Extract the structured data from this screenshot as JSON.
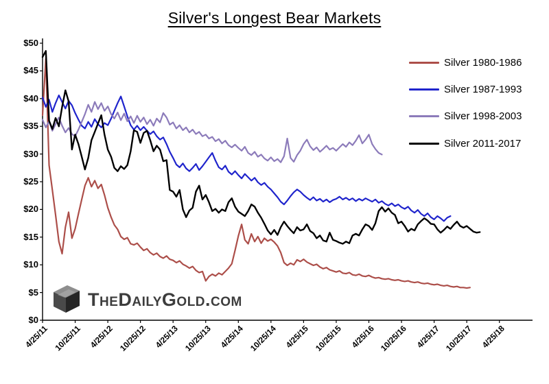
{
  "title": "Silver's Longest Bear Markets",
  "watermark": {
    "text": "TheDailyGold.com"
  },
  "chart_data": {
    "type": "line",
    "title": "Silver's Longest Bear Markets",
    "grid": false,
    "legend": {
      "position": "top-right",
      "entries": [
        "Silver 1980-1986",
        "Silver 1987-1993",
        "Silver 1998-2003",
        "Silver 2011-2017"
      ]
    },
    "x_axis": {
      "tick_labels": [
        "4/25/11",
        "10/25/11",
        "4/25/12",
        "10/25/12",
        "4/25/13",
        "10/25/13",
        "4/25/14",
        "10/25/14",
        "4/25/15",
        "10/25/15",
        "4/25/16",
        "10/25/16",
        "4/25/17",
        "10/25/17",
        "4/25/18"
      ],
      "note": "all four bear markets overlaid on a common timeline, t in 6-month units from 4/25/11"
    },
    "y_axis": {
      "min": 0,
      "max": 50,
      "tick_step": 5,
      "tick_labels": [
        "$0",
        "$5",
        "$10",
        "$15",
        "$20",
        "$25",
        "$30",
        "$35",
        "$40",
        "$45",
        "$50"
      ]
    },
    "series": [
      {
        "name": "Silver 1980-1986",
        "color": "#ac4e49",
        "t_start": 0,
        "t_step": 0.1,
        "values": [
          37,
          47.2,
          28,
          23.5,
          19,
          14.2,
          12,
          16.8,
          19.5,
          14.8,
          16.5,
          19.2,
          21.8,
          24.3,
          25.7,
          24.1,
          25.2,
          23.8,
          24.5,
          22.6,
          20.3,
          18.6,
          17.2,
          16.4,
          15.1,
          14.6,
          14.9,
          13.8,
          13.6,
          13.9,
          13.2,
          12.6,
          12.9,
          12.2,
          11.8,
          12.1,
          11.5,
          11.2,
          11.6,
          11,
          10.8,
          10.4,
          10.7,
          10.1,
          9.8,
          9.4,
          9.7,
          9,
          8.6,
          8.8,
          7.1,
          7.9,
          8.3,
          8,
          8.5,
          8.2,
          8.8,
          9.4,
          10.2,
          12.6,
          15.2,
          17.3,
          14.5,
          13.8,
          15.6,
          14.2,
          15.1,
          13.9,
          14.8,
          14.3,
          14.6,
          14.1,
          13.4,
          12.2,
          10.4,
          9.9,
          10.3,
          10,
          10.9,
          10.6,
          11,
          10.5,
          10.2,
          9.9,
          10.1,
          9.6,
          9.3,
          9.5,
          9.1,
          8.9,
          8.7,
          8.9,
          8.5,
          8.4,
          8.6,
          8.2,
          8.1,
          8.3,
          8,
          7.9,
          8.1,
          7.8,
          7.6,
          7.7,
          7.5,
          7.4,
          7.5,
          7.3,
          7.2,
          7.3,
          7.1,
          7,
          7.1,
          6.9,
          6.8,
          6.9,
          6.7,
          6.6,
          6.7,
          6.5,
          6.4,
          6.5,
          6.3,
          6.2,
          6.3,
          6.1,
          6,
          6.1,
          5.9,
          5.9,
          5.8,
          5.9
        ]
      },
      {
        "name": "Silver 1987-1993",
        "color": "#1f24cc",
        "t_start": 0,
        "t_step": 0.1,
        "values": [
          40.2,
          38.5,
          39.8,
          37.6,
          39.2,
          40.6,
          39.4,
          38.2,
          39.6,
          38.8,
          37.4,
          36.2,
          35.1,
          34.6,
          35.8,
          34.9,
          36.3,
          35.4,
          34.8,
          35.6,
          35.2,
          36.4,
          37.8,
          39.2,
          40.4,
          38.6,
          36.8,
          35.2,
          34.4,
          35.1,
          34.3,
          34.9,
          34.2,
          33.6,
          34.1,
          33.2,
          32.6,
          33,
          31.8,
          30.4,
          29.3,
          28.1,
          27.6,
          28.3,
          27.4,
          26.9,
          27.5,
          28.2,
          27.1,
          27.8,
          28.6,
          29.4,
          30.2,
          28.8,
          27.6,
          27.2,
          27.9,
          26.8,
          26.3,
          26.9,
          26.2,
          25.6,
          26.4,
          25.8,
          25.2,
          25.7,
          24.9,
          24.4,
          24.8,
          24.1,
          23.6,
          22.9,
          22.2,
          21.4,
          20.9,
          21.6,
          22.4,
          23.1,
          23.6,
          23.2,
          22.6,
          22.1,
          21.7,
          22.2,
          21.6,
          21.9,
          21.4,
          21.8,
          21.3,
          21.7,
          21.9,
          22.3,
          21.8,
          22.1,
          21.7,
          22,
          21.5,
          21.9,
          21.6,
          22,
          21.7,
          21.4,
          21.8,
          21.2,
          21.5,
          21,
          20.7,
          21.1,
          20.6,
          20.9,
          20.4,
          20.1,
          20.5,
          19.8,
          19.4,
          19.9,
          19.2,
          18.8,
          19.3,
          18.6,
          18.2,
          18.8,
          18.4,
          17.9,
          18.5,
          18.8
        ]
      },
      {
        "name": "Silver 1998-2003",
        "color": "#8c7bba",
        "t_start": 0,
        "t_step": 0.1,
        "values": [
          36.2,
          34.8,
          35.9,
          34.2,
          35.4,
          36.6,
          35.1,
          33.9,
          34.7,
          33.6,
          33.2,
          34.4,
          35.8,
          37.2,
          38.9,
          37.6,
          39.4,
          38.1,
          39.2,
          37.8,
          38.6,
          37.2,
          36.4,
          37.5,
          36.1,
          37.3,
          35.9,
          36.8,
          35.6,
          36.9,
          35.8,
          36.6,
          35.4,
          36.2,
          35.1,
          36.4,
          35.7,
          37.4,
          36.6,
          35.3,
          35.7,
          34.6,
          35.2,
          34.3,
          34.8,
          33.9,
          34.4,
          33.6,
          34,
          33.2,
          33.5,
          32.8,
          33.1,
          32.3,
          32.7,
          31.9,
          32.4,
          31.6,
          31.2,
          31.7,
          31.1,
          30.6,
          31.3,
          30.2,
          29.8,
          30.4,
          29.5,
          29.9,
          29.2,
          28.8,
          29.4,
          28.7,
          29.1,
          28.5,
          29.6,
          32.8,
          29.3,
          28.6,
          29.8,
          30.6,
          31.8,
          32.6,
          31.4,
          30.7,
          31.2,
          30.4,
          30.9,
          31.5,
          30.8,
          31.1,
          30.6,
          31.2,
          31.8,
          31.3,
          32.1,
          31.6,
          32.4,
          33.4,
          31.9,
          32.6,
          33.5,
          31.8,
          30.9,
          30.2,
          29.9
        ]
      },
      {
        "name": "Silver 2011-2017",
        "color": "#000000",
        "t_start": 0,
        "t_step": 0.1,
        "values": [
          47.5,
          48.6,
          36,
          34.5,
          36.5,
          35,
          38.5,
          41.5,
          39.5,
          30.8,
          33.5,
          31.8,
          29.5,
          27.2,
          29.3,
          32.5,
          34,
          35.5,
          37,
          33.5,
          30.8,
          29.5,
          27.5,
          26.9,
          27.8,
          27.3,
          28,
          30.5,
          34.3,
          34,
          32,
          33.8,
          34.2,
          32.5,
          30.5,
          31.5,
          30.8,
          28.7,
          28.9,
          23.5,
          23.2,
          22.3,
          23.5,
          20,
          18.6,
          19.8,
          20.3,
          23.2,
          24.3,
          21.8,
          22.6,
          21.3,
          19.7,
          20.1,
          19.4,
          20,
          19.7,
          21.3,
          22,
          20.5,
          19.6,
          19.2,
          18.8,
          19.7,
          20.9,
          20.5,
          19.4,
          18.5,
          17.4,
          16.2,
          15.5,
          16.3,
          15.4,
          16.8,
          17.8,
          17,
          16.3,
          15.7,
          16.8,
          16.2,
          16.4,
          17.3,
          16.1,
          15.7,
          14.8,
          15.3,
          14.4,
          14.2,
          15.8,
          14.5,
          14.3,
          14,
          13.8,
          14.2,
          13.9,
          15.3,
          15.6,
          15.3,
          16.4,
          17.3,
          17,
          16.3,
          17.5,
          19.7,
          20.4,
          19.6,
          20.2,
          19.4,
          19,
          17.5,
          17.8,
          17,
          16,
          16.5,
          16.2,
          17.3,
          17.9,
          18.4,
          18,
          17.4,
          17.3,
          16.4,
          15.8,
          16.3,
          16.9,
          16.5,
          17.2,
          17.8,
          17,
          16.7,
          17,
          16.5,
          16,
          15.8,
          15.9
        ]
      }
    ]
  }
}
